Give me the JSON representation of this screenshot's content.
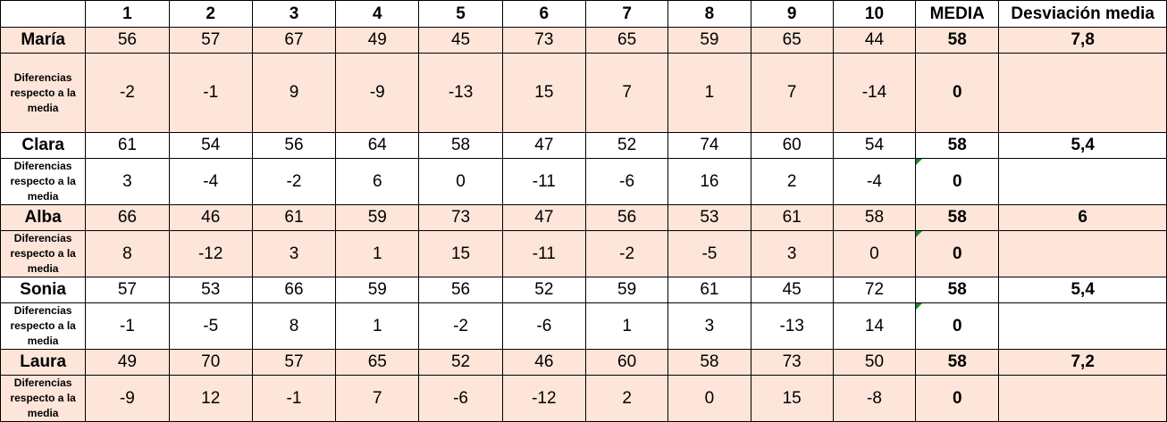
{
  "headers": [
    "",
    "1",
    "2",
    "3",
    "4",
    "5",
    "6",
    "7",
    "8",
    "9",
    "10",
    "MEDIA",
    "Desviación media"
  ],
  "diff_label": "Diferencias respecto a la media",
  "students": [
    {
      "name": "María",
      "scores": [
        "56",
        "57",
        "67",
        "49",
        "45",
        "73",
        "65",
        "59",
        "65",
        "44"
      ],
      "media": "58",
      "desviacion": "7,8",
      "diffs": [
        "-2",
        "-1",
        "9",
        "-9",
        "-13",
        "15",
        "7",
        "1",
        "7",
        "-14"
      ],
      "diff_media": "0"
    },
    {
      "name": "Clara",
      "scores": [
        "61",
        "54",
        "56",
        "64",
        "58",
        "47",
        "52",
        "74",
        "60",
        "54"
      ],
      "media": "58",
      "desviacion": "5,4",
      "diffs": [
        "3",
        "-4",
        "-2",
        "6",
        "0",
        "-11",
        "-6",
        "16",
        "2",
        "-4"
      ],
      "diff_media": "0"
    },
    {
      "name": "Alba",
      "scores": [
        "66",
        "46",
        "61",
        "59",
        "73",
        "47",
        "56",
        "53",
        "61",
        "58"
      ],
      "media": "58",
      "desviacion": "6",
      "diffs": [
        "8",
        "-12",
        "3",
        "1",
        "15",
        "-11",
        "-2",
        "-5",
        "3",
        "0"
      ],
      "diff_media": "0"
    },
    {
      "name": "Sonia",
      "scores": [
        "57",
        "53",
        "66",
        "59",
        "56",
        "52",
        "59",
        "61",
        "45",
        "72"
      ],
      "media": "58",
      "desviacion": "5,4",
      "diffs": [
        "-1",
        "-5",
        "8",
        "1",
        "-2",
        "-6",
        "1",
        "3",
        "-13",
        "14"
      ],
      "diff_media": "0"
    },
    {
      "name": "Laura",
      "scores": [
        "49",
        "70",
        "57",
        "65",
        "52",
        "46",
        "60",
        "58",
        "73",
        "50"
      ],
      "media": "58",
      "desviacion": "7,2",
      "diffs": [
        "-9",
        "12",
        "-1",
        "7",
        "-6",
        "-12",
        "2",
        "0",
        "15",
        "-8"
      ],
      "diff_media": "0"
    }
  ],
  "colors": {
    "pink_fill": "#fde5d9",
    "white_fill": "#ffffff",
    "comment_marker": "#1a8a2a"
  }
}
